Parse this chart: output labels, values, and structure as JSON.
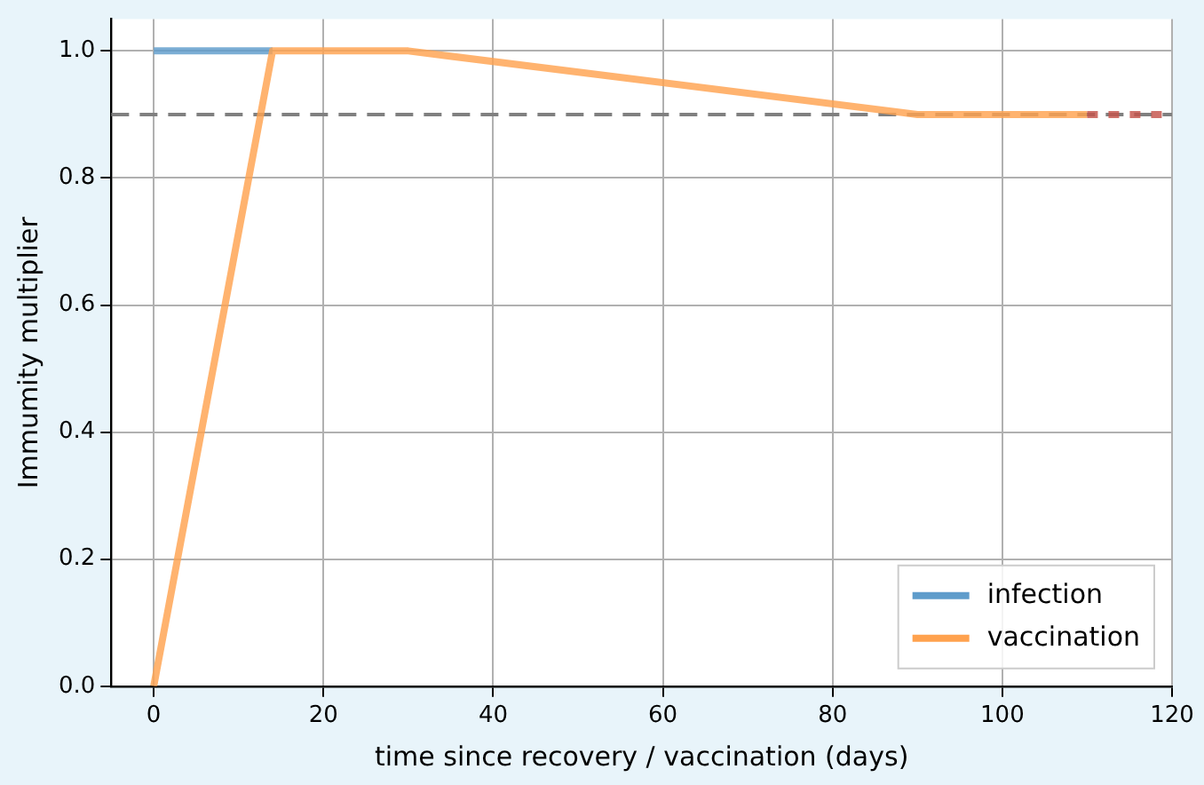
{
  "chart_data": {
    "type": "line",
    "xlabel": "time since recovery / vaccination (days)",
    "ylabel": "Immumity multiplier",
    "xlim": [
      -5,
      120
    ],
    "xticks": [
      0,
      20,
      40,
      60,
      80,
      100,
      120
    ],
    "ylim": [
      0,
      1.05
    ],
    "yticks": [
      {
        "value": 0,
        "label": "0.0"
      },
      0.2,
      0.4,
      0.6,
      0.8,
      {
        "value": 1,
        "label": "1.0"
      }
    ],
    "grid": true,
    "legend": "bottom right",
    "marker": "none",
    "series": [
      {
        "name": "infection",
        "color": "#5f9ccb",
        "x": [
          0,
          14
        ],
        "values": [
          1,
          1
        ]
      },
      {
        "name": "vaccination",
        "color": "#ffa24e",
        "x": [
          0,
          14,
          30,
          90,
          110
        ],
        "values": [
          0,
          1,
          1,
          0.9,
          0.9
        ]
      },
      {
        "color": "#c4524a",
        "x": [
          110,
          120
        ],
        "values": [
          0.9,
          0.9
        ],
        "line_style": "dotted"
      }
    ],
    "ref_lines": [
      {
        "axis": "y",
        "value": 0.9,
        "color": "#808080",
        "line_style": "dashed"
      }
    ]
  }
}
